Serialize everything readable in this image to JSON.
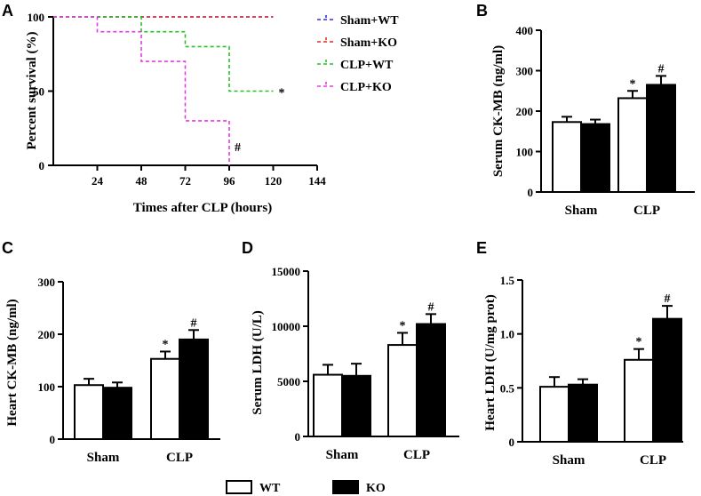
{
  "colors": {
    "sham_wt": "#2d2dea",
    "sham_ko": "#e02b2b",
    "clp_wt": "#22c322",
    "clp_ko": "#e23be2",
    "wt_fill": "#ffffff",
    "ko_fill": "#000000"
  },
  "legend": {
    "wt": "WT",
    "ko": "KO"
  },
  "chart_data": [
    {
      "panel": "A",
      "type": "line",
      "subtype": "kaplan-meier step",
      "xlabel": "Times after CLP (hours)",
      "ylabel": "Percent survival (%)",
      "xlim": [
        0,
        144
      ],
      "ylim": [
        0,
        100
      ],
      "xticks": [
        24,
        48,
        72,
        96,
        120,
        144
      ],
      "yticks": [
        0,
        50,
        100
      ],
      "legend_position": "top-right",
      "series": [
        {
          "name": "Sham+WT",
          "color": "#2d2dea",
          "points": [
            [
              0,
              100
            ],
            [
              120,
              100
            ]
          ],
          "end_marker": ""
        },
        {
          "name": "Sham+KO",
          "color": "#e02b2b",
          "points": [
            [
              0,
              100
            ],
            [
              120,
              100
            ]
          ],
          "end_marker": ""
        },
        {
          "name": "CLP+WT",
          "color": "#22c322",
          "points": [
            [
              0,
              100
            ],
            [
              48,
              100
            ],
            [
              48,
              90
            ],
            [
              72,
              90
            ],
            [
              72,
              80
            ],
            [
              96,
              80
            ],
            [
              96,
              50
            ],
            [
              120,
              50
            ]
          ],
          "end_marker": "*"
        },
        {
          "name": "CLP+KO",
          "color": "#e23be2",
          "points": [
            [
              0,
              100
            ],
            [
              24,
              100
            ],
            [
              24,
              90
            ],
            [
              48,
              90
            ],
            [
              48,
              70
            ],
            [
              72,
              70
            ],
            [
              72,
              30
            ],
            [
              96,
              30
            ],
            [
              96,
              0
            ]
          ],
          "end_marker": "#"
        }
      ]
    },
    {
      "panel": "B",
      "type": "bar",
      "ylabel": "Serum CK-MB (ng/ml)",
      "categories": [
        "Sham",
        "CLP"
      ],
      "ylim": [
        0,
        400
      ],
      "yticks": [
        0,
        100,
        200,
        300,
        400
      ],
      "series": [
        {
          "name": "WT",
          "values": [
            173,
            232
          ],
          "errors": [
            13,
            18
          ],
          "marks": [
            "",
            "*"
          ]
        },
        {
          "name": "KO",
          "values": [
            168,
            265
          ],
          "errors": [
            11,
            22
          ],
          "marks": [
            "",
            "#"
          ]
        }
      ]
    },
    {
      "panel": "C",
      "type": "bar",
      "ylabel": "Heart CK-MB (ng/ml)",
      "categories": [
        "Sham",
        "CLP"
      ],
      "ylim": [
        0,
        300
      ],
      "yticks": [
        0,
        100,
        200,
        300
      ],
      "series": [
        {
          "name": "WT",
          "values": [
            103,
            153
          ],
          "errors": [
            12,
            14
          ],
          "marks": [
            "",
            "*"
          ]
        },
        {
          "name": "KO",
          "values": [
            98,
            190
          ],
          "errors": [
            10,
            18
          ],
          "marks": [
            "",
            "#"
          ]
        }
      ]
    },
    {
      "panel": "D",
      "type": "bar",
      "ylabel": "Serum LDH (U/L)",
      "categories": [
        "Sham",
        "CLP"
      ],
      "ylim": [
        0,
        15000
      ],
      "yticks": [
        0,
        5000,
        10000,
        15000
      ],
      "series": [
        {
          "name": "WT",
          "values": [
            5600,
            8300
          ],
          "errors": [
            900,
            1100
          ],
          "marks": [
            "",
            "*"
          ]
        },
        {
          "name": "KO",
          "values": [
            5500,
            10200
          ],
          "errors": [
            1100,
            900
          ],
          "marks": [
            "",
            "#"
          ]
        }
      ]
    },
    {
      "panel": "E",
      "type": "bar",
      "ylabel": "Heart LDH (U/mg prot)",
      "categories": [
        "Sham",
        "CLP"
      ],
      "ylim": [
        0,
        1.5
      ],
      "yticks": [
        0,
        0.5,
        1.0,
        1.5
      ],
      "ytick_labels": [
        "0",
        "0.5",
        "1.0",
        "1.5"
      ],
      "series": [
        {
          "name": "WT",
          "values": [
            0.51,
            0.76
          ],
          "errors": [
            0.09,
            0.1
          ],
          "marks": [
            "",
            "*"
          ]
        },
        {
          "name": "KO",
          "values": [
            0.53,
            1.14
          ],
          "errors": [
            0.05,
            0.12
          ],
          "marks": [
            "",
            "#"
          ]
        }
      ]
    }
  ]
}
